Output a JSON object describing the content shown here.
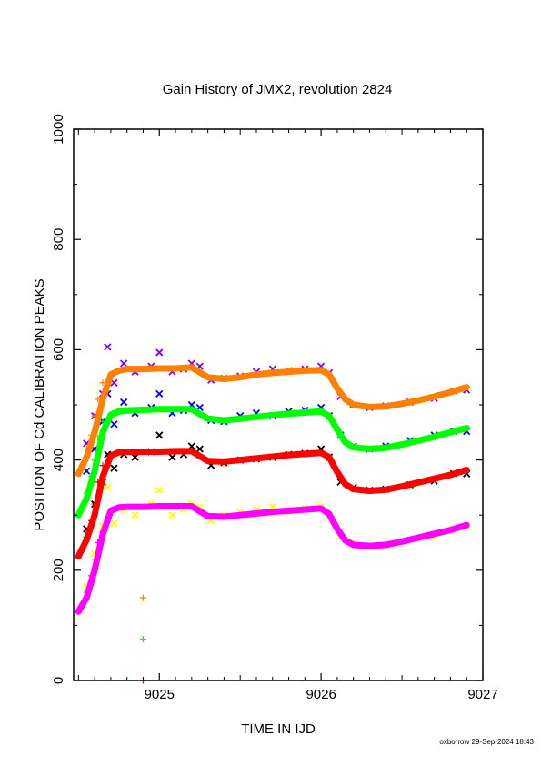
{
  "chart_data": {
    "type": "line",
    "title": "Gain History of JMX2, revolution 2824",
    "xlabel": "TIME IN IJD",
    "ylabel": "POSITION OF Cd CALIBRATION PEAKS",
    "xlim": [
      9024.47,
      9027.0
    ],
    "ylim": [
      0,
      1000
    ],
    "x_ticks": [
      "9025",
      "9026",
      "9027"
    ],
    "y_ticks": [
      "0",
      "200",
      "400",
      "600",
      "800",
      "1000"
    ],
    "grid": false,
    "legend": "none",
    "footer": "oxborrow 29-Sep-2024 18:43",
    "series": [
      {
        "role": "fit",
        "color": "#ff8000",
        "x": [
          9024.5,
          9024.55,
          9024.6,
          9024.65,
          9024.7,
          9024.75,
          9024.8,
          9024.9,
          9025.0,
          9025.1,
          9025.2,
          9025.3,
          9025.4,
          9025.5,
          9025.6,
          9025.7,
          9025.8,
          9025.9,
          9026.0,
          9026.05,
          9026.1,
          9026.15,
          9026.2,
          9026.3,
          9026.4,
          9026.5,
          9026.6,
          9026.7,
          9026.8,
          9026.9
        ],
        "y": [
          375,
          405,
          450,
          510,
          555,
          562,
          565,
          565,
          566,
          566,
          568,
          550,
          547,
          550,
          555,
          558,
          560,
          562,
          563,
          555,
          530,
          510,
          500,
          496,
          497,
          502,
          508,
          515,
          523,
          532
        ]
      },
      {
        "role": "fit",
        "color": "#00ff00",
        "x": [
          9024.5,
          9024.55,
          9024.6,
          9024.65,
          9024.7,
          9024.75,
          9024.8,
          9024.9,
          9025.0,
          9025.1,
          9025.2,
          9025.3,
          9025.4,
          9025.5,
          9025.6,
          9025.7,
          9025.8,
          9025.9,
          9026.0,
          9026.05,
          9026.1,
          9026.15,
          9026.2,
          9026.3,
          9026.4,
          9026.5,
          9026.6,
          9026.7,
          9026.8,
          9026.9
        ],
        "y": [
          300,
          330,
          380,
          450,
          482,
          488,
          490,
          491,
          492,
          492,
          492,
          475,
          472,
          475,
          478,
          481,
          484,
          486,
          488,
          480,
          455,
          432,
          423,
          420,
          422,
          428,
          435,
          442,
          450,
          458
        ]
      },
      {
        "role": "fit",
        "color": "#ff0000",
        "x": [
          9024.5,
          9024.55,
          9024.6,
          9024.65,
          9024.7,
          9024.75,
          9024.8,
          9024.9,
          9025.0,
          9025.1,
          9025.2,
          9025.3,
          9025.4,
          9025.5,
          9025.6,
          9025.7,
          9025.8,
          9025.9,
          9026.0,
          9026.05,
          9026.1,
          9026.15,
          9026.2,
          9026.3,
          9026.4,
          9026.5,
          9026.6,
          9026.7,
          9026.8,
          9026.9
        ],
        "y": [
          225,
          255,
          300,
          370,
          408,
          414,
          415,
          415,
          415,
          416,
          416,
          398,
          397,
          400,
          403,
          406,
          409,
          411,
          413,
          405,
          378,
          356,
          347,
          344,
          346,
          352,
          359,
          366,
          373,
          382
        ]
      },
      {
        "role": "fit",
        "color": "#ff00ff",
        "x": [
          9024.5,
          9024.55,
          9024.6,
          9024.65,
          9024.7,
          9024.75,
          9024.8,
          9024.9,
          9025.0,
          9025.1,
          9025.2,
          9025.3,
          9025.4,
          9025.5,
          9025.6,
          9025.7,
          9025.8,
          9025.9,
          9026.0,
          9026.05,
          9026.1,
          9026.15,
          9026.2,
          9026.3,
          9026.4,
          9026.5,
          9026.6,
          9026.7,
          9026.8,
          9026.9
        ],
        "y": [
          125,
          150,
          200,
          265,
          308,
          314,
          315,
          315,
          316,
          316,
          316,
          298,
          297,
          300,
          303,
          306,
          308,
          310,
          312,
          302,
          275,
          254,
          246,
          244,
          246,
          252,
          259,
          266,
          273,
          282
        ]
      },
      {
        "role": "points",
        "color": "#8000ff",
        "marker": "x",
        "x": [
          9024.55,
          9024.6,
          9024.65,
          9024.68,
          9024.72,
          9024.78,
          9024.85,
          9024.95,
          9025.0,
          9025.08,
          9025.15,
          9025.2,
          9025.25,
          9025.32,
          9025.4,
          9025.5,
          9025.6,
          9025.7,
          9025.8,
          9025.9,
          9026.0,
          9026.05,
          9026.12,
          9026.2,
          9026.3,
          9026.4,
          9026.55,
          9026.7,
          9026.82,
          9026.9
        ],
        "y": [
          430,
          480,
          520,
          605,
          540,
          575,
          560,
          570,
          595,
          560,
          565,
          575,
          570,
          545,
          548,
          552,
          560,
          565,
          562,
          565,
          570,
          558,
          515,
          500,
          495,
          498,
          505,
          512,
          525,
          527
        ]
      },
      {
        "role": "points",
        "color": "#0000ff",
        "marker": "x",
        "x": [
          9024.55,
          9024.6,
          9024.65,
          9024.68,
          9024.72,
          9024.78,
          9024.85,
          9024.95,
          9025.0,
          9025.08,
          9025.15,
          9025.2,
          9025.25,
          9025.32,
          9025.4,
          9025.5,
          9025.6,
          9025.7,
          9025.8,
          9025.9,
          9026.0,
          9026.05,
          9026.12,
          9026.2,
          9026.3,
          9026.4,
          9026.55,
          9026.7,
          9026.82,
          9026.9
        ],
        "y": [
          380,
          420,
          470,
          520,
          465,
          505,
          485,
          495,
          520,
          485,
          490,
          500,
          495,
          472,
          470,
          480,
          485,
          480,
          488,
          490,
          495,
          480,
          445,
          425,
          420,
          425,
          435,
          445,
          452,
          452
        ]
      },
      {
        "role": "points",
        "color": "#000000",
        "marker": "x",
        "x": [
          9024.55,
          9024.6,
          9024.65,
          9024.68,
          9024.72,
          9024.78,
          9024.85,
          9024.95,
          9025.0,
          9025.08,
          9025.15,
          9025.2,
          9025.25,
          9025.32,
          9025.4,
          9025.5,
          9025.6,
          9025.7,
          9025.8,
          9025.9,
          9026.0,
          9026.05,
          9026.12,
          9026.2,
          9026.3,
          9026.4,
          9026.55,
          9026.7,
          9026.82,
          9026.9
        ],
        "y": [
          275,
          320,
          360,
          410,
          385,
          410,
          405,
          415,
          445,
          405,
          410,
          425,
          420,
          390,
          395,
          400,
          402,
          405,
          410,
          412,
          420,
          405,
          360,
          350,
          345,
          347,
          355,
          362,
          375,
          375
        ]
      },
      {
        "role": "points",
        "color": "#ffff00",
        "marker": "x",
        "x": [
          9024.55,
          9024.6,
          9024.65,
          9024.68,
          9024.72,
          9024.78,
          9024.85,
          9024.95,
          9025.0,
          9025.08,
          9025.15,
          9025.2,
          9025.25,
          9025.32,
          9025.4,
          9025.5,
          9025.6,
          9025.7,
          9025.8,
          9025.9,
          9026.0,
          9026.05,
          9026.12,
          9026.2,
          9026.3,
          9026.4,
          9026.55,
          9026.7,
          9026.82,
          9026.9
        ],
        "y": [
          170,
          230,
          280,
          350,
          285,
          310,
          300,
          320,
          345,
          300,
          310,
          320,
          315,
          290,
          300,
          305,
          310,
          315,
          308,
          312,
          315,
          300,
          262,
          250,
          243,
          246,
          255,
          262,
          275,
          278
        ]
      },
      {
        "role": "points",
        "color": "#ff8000",
        "marker": "+",
        "x": [
          9024.55,
          9024.58,
          9024.6,
          9024.62,
          9024.65,
          9024.9
        ],
        "y": [
          420,
          445,
          480,
          510,
          540,
          150
        ]
      },
      {
        "role": "points",
        "color": "#00ff00",
        "marker": "+",
        "x": [
          9024.55,
          9024.58,
          9024.6,
          9024.62,
          9024.65,
          9024.9
        ],
        "y": [
          340,
          370,
          400,
          440,
          470,
          75
        ]
      },
      {
        "role": "points",
        "color": "#ff0000",
        "marker": "+",
        "x": [
          9024.55,
          9024.58,
          9024.6,
          9024.62,
          9024.65,
          9024.9
        ],
        "y": [
          260,
          290,
          320,
          360,
          390,
          0
        ]
      },
      {
        "role": "points",
        "color": "#ff00ff",
        "marker": "+",
        "x": [
          9024.55,
          9024.58,
          9024.6,
          9024.62,
          9024.65
        ],
        "y": [
          160,
          190,
          220,
          250,
          270
        ]
      }
    ]
  }
}
